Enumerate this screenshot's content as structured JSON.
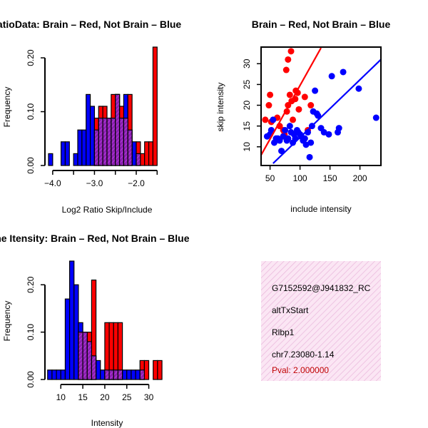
{
  "colors": {
    "red": "#ff0000",
    "blue": "#0000ff",
    "purple": "#a020f0",
    "pink_bg": "#f7d8ee"
  },
  "chart_data": [
    {
      "id": "ratio",
      "type": "bar",
      "title": "RatioData: Brain – Red, Not Brain – Blue",
      "xlabel": "Log2 Ratio Skip/Include",
      "ylabel": "Frequency",
      "xlim": [
        -4.1,
        -1.3
      ],
      "ylim": [
        0,
        0.22
      ],
      "xticks": [
        -4.0,
        -3.5,
        -3.0,
        -2.5,
        -2.0,
        -1.5
      ],
      "xtick_labels": [
        "−4.0",
        "",
        "−3.0",
        "",
        "−2.0",
        ""
      ],
      "yticks": [
        0.0,
        0.1,
        0.2
      ],
      "ytick_labels": [
        "0.00",
        "0.10",
        "0.20"
      ],
      "bin_width": 0.1,
      "series": [
        {
          "name": "Not Brain",
          "color": "blue",
          "bins": [
            [
              -4.1,
              0.022
            ],
            [
              -3.8,
              0.044
            ],
            [
              -3.7,
              0.044
            ],
            [
              -3.5,
              0.022
            ],
            [
              -3.4,
              0.066
            ],
            [
              -3.3,
              0.066
            ],
            [
              -3.2,
              0.132
            ],
            [
              -3.1,
              0.11
            ],
            [
              -3.0,
              0.066
            ],
            [
              -2.9,
              0.088
            ],
            [
              -2.8,
              0.088
            ],
            [
              -2.7,
              0.088
            ],
            [
              -2.6,
              0.088
            ],
            [
              -2.5,
              0.132
            ],
            [
              -2.4,
              0.088
            ],
            [
              -2.3,
              0.132
            ],
            [
              -2.2,
              0.066
            ],
            [
              -2.1,
              0.044
            ],
            [
              -2.0,
              0.022
            ]
          ]
        },
        {
          "name": "Brain",
          "color": "red",
          "bins": [
            [
              -3.0,
              0.088
            ],
            [
              -2.9,
              0.11
            ],
            [
              -2.8,
              0.11
            ],
            [
              -2.7,
              0.088
            ],
            [
              -2.6,
              0.132
            ],
            [
              -2.5,
              0.132
            ],
            [
              -2.4,
              0.11
            ],
            [
              -2.3,
              0.088
            ],
            [
              -2.2,
              0.132
            ],
            [
              -2.0,
              0.044
            ],
            [
              -1.9,
              0.022
            ],
            [
              -1.8,
              0.044
            ],
            [
              -1.7,
              0.044
            ],
            [
              -1.6,
              0.22
            ]
          ]
        }
      ]
    },
    {
      "id": "scatter",
      "type": "scatter",
      "title": "Brain – Red, Not Brain – Blue",
      "xlabel": "include intensity",
      "ylabel": "skip intensity",
      "xlim": [
        35,
        235
      ],
      "ylim": [
        5.5,
        34
      ],
      "xticks": [
        50,
        100,
        150,
        200
      ],
      "xtick_labels": [
        "50",
        "100",
        "150",
        "200"
      ],
      "yticks": [
        10,
        15,
        20,
        25,
        30
      ],
      "ytick_labels": [
        "10",
        "15",
        "20",
        "25",
        "30"
      ],
      "series": [
        {
          "name": "Brain",
          "color": "red",
          "points": [
            [
              42,
              16.5
            ],
            [
              48,
              20
            ],
            [
              50,
              22.5
            ],
            [
              52,
              16
            ],
            [
              62,
              17
            ],
            [
              66,
              15
            ],
            [
              72,
              14
            ],
            [
              74,
              13
            ],
            [
              77,
              28.5
            ],
            [
              78,
              18.5
            ],
            [
              80,
              20
            ],
            [
              80,
              31
            ],
            [
              83,
              22.5
            ],
            [
              85,
              33
            ],
            [
              86,
              21
            ],
            [
              88,
              16.5
            ],
            [
              92,
              21.5
            ],
            [
              93,
              23.5
            ],
            [
              96,
              23
            ],
            [
              98,
              19
            ],
            [
              108,
              22
            ],
            [
              113,
              14
            ],
            [
              118,
              20
            ]
          ],
          "fit": [
            [
              35,
              8
            ],
            [
              135,
              33.8
            ]
          ]
        },
        {
          "name": "Not Brain",
          "color": "blue",
          "points": [
            [
              45,
              12.5
            ],
            [
              50,
              13
            ],
            [
              52,
              14
            ],
            [
              55,
              16.5
            ],
            [
              57,
              11
            ],
            [
              60,
              12
            ],
            [
              63,
              12
            ],
            [
              66,
              11.5
            ],
            [
              69,
              9
            ],
            [
              72,
              12.5
            ],
            [
              75,
              14
            ],
            [
              78,
              11.5
            ],
            [
              80,
              12
            ],
            [
              83,
              15
            ],
            [
              85,
              13.5
            ],
            [
              88,
              11
            ],
            [
              90,
              13
            ],
            [
              92,
              12
            ],
            [
              95,
              14
            ],
            [
              97,
              13.5
            ],
            [
              100,
              13
            ],
            [
              102,
              12.5
            ],
            [
              105,
              11.5
            ],
            [
              108,
              12
            ],
            [
              110,
              10.5
            ],
            [
              113,
              13.5
            ],
            [
              116,
              7.5
            ],
            [
              118,
              11
            ],
            [
              120,
              15
            ],
            [
              122,
              18.5
            ],
            [
              125,
              23.5
            ],
            [
              128,
              18
            ],
            [
              130,
              17.5
            ],
            [
              135,
              14.5
            ],
            [
              140,
              13.5
            ],
            [
              148,
              13
            ],
            [
              153,
              27
            ],
            [
              163,
              13.5
            ],
            [
              165,
              14.5
            ],
            [
              172,
              28
            ],
            [
              198,
              24
            ],
            [
              227,
              17
            ]
          ],
          "fit": [
            [
              55,
              6
            ],
            [
              235,
              31
            ]
          ]
        }
      ]
    },
    {
      "id": "intensity",
      "type": "bar",
      "title": "Gene Itensity: Brain – Red, Not Brain – Blue",
      "xlabel": "Intensity",
      "ylabel": "Frequency",
      "xlim": [
        7.2,
        33.8
      ],
      "ylim": [
        0,
        0.25
      ],
      "xticks": [
        10,
        15,
        20,
        25,
        30
      ],
      "xtick_labels": [
        "10",
        "15",
        "20",
        "25",
        "30"
      ],
      "yticks": [
        0.0,
        0.1,
        0.2
      ],
      "ytick_labels": [
        "0.00",
        "0.10",
        "0.20"
      ],
      "bin_width": 1,
      "series": [
        {
          "name": "Not Brain",
          "color": "blue",
          "bins": [
            [
              7,
              0.02
            ],
            [
              8,
              0.02
            ],
            [
              9,
              0.02
            ],
            [
              10,
              0.02
            ],
            [
              11,
              0.17
            ],
            [
              12,
              0.25
            ],
            [
              13,
              0.2
            ],
            [
              14,
              0.12
            ],
            [
              15,
              0.1
            ],
            [
              16,
              0.08
            ],
            [
              17,
              0.05
            ],
            [
              18,
              0.04
            ],
            [
              19,
              0.02
            ],
            [
              20,
              0.02
            ],
            [
              21,
              0.02
            ],
            [
              22,
              0.02
            ],
            [
              23,
              0.02
            ],
            [
              24,
              0.02
            ],
            [
              25,
              0.02
            ],
            [
              26,
              0.02
            ],
            [
              27,
              0.02
            ],
            [
              28,
              0.02
            ]
          ]
        },
        {
          "name": "Brain",
          "color": "red",
          "bins": [
            [
              14,
              0.1
            ],
            [
              15,
              0.1
            ],
            [
              16,
              0.1
            ],
            [
              17,
              0.21
            ],
            [
              20,
              0.12
            ],
            [
              21,
              0.12
            ],
            [
              22,
              0.12
            ],
            [
              23,
              0.12
            ],
            [
              28,
              0.04
            ],
            [
              29,
              0.04
            ],
            [
              31,
              0.04
            ],
            [
              32,
              0.04
            ]
          ]
        }
      ]
    }
  ],
  "info_panel": {
    "probe_id": "G7152592@J941832_RC",
    "event_type": "altTxStart",
    "gene": "Rlbp1",
    "location": "chr7.23080-1.14",
    "pval": "Pval: 2.000000"
  }
}
